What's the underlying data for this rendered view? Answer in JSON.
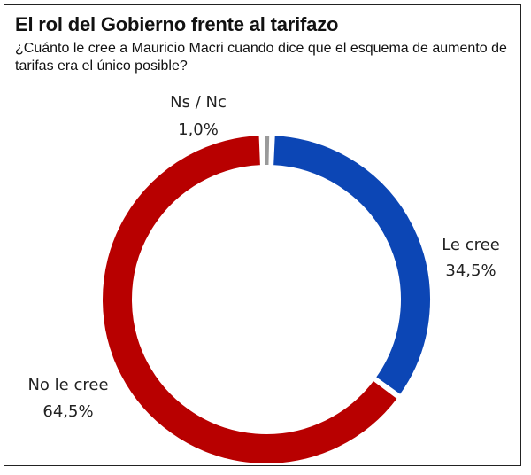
{
  "title": "El rol del Gobierno frente al tarifazo",
  "subtitle": "¿Cuánto le cree a Mauricio Macri cuando dice que el esquema de aumento de tarifas era el único posible?",
  "chart_data": {
    "type": "pie",
    "style": "donut",
    "title": "El rol del Gobierno frente al tarifazo",
    "subtitle": "¿Cuánto le cree a Mauricio Macri cuando dice que el esquema de aumento de tarifas era el único posible?",
    "slices": [
      {
        "name": "Le cree",
        "value": 34.5,
        "label": "34,5%",
        "color": "#0c46b5"
      },
      {
        "name": "No le cree",
        "value": 64.5,
        "label": "64,5%",
        "color": "#b80000"
      },
      {
        "name": "Ns / Nc",
        "value": 1.0,
        "label": "1,0%",
        "color": "#9a9a9a"
      }
    ],
    "legend": "none"
  }
}
